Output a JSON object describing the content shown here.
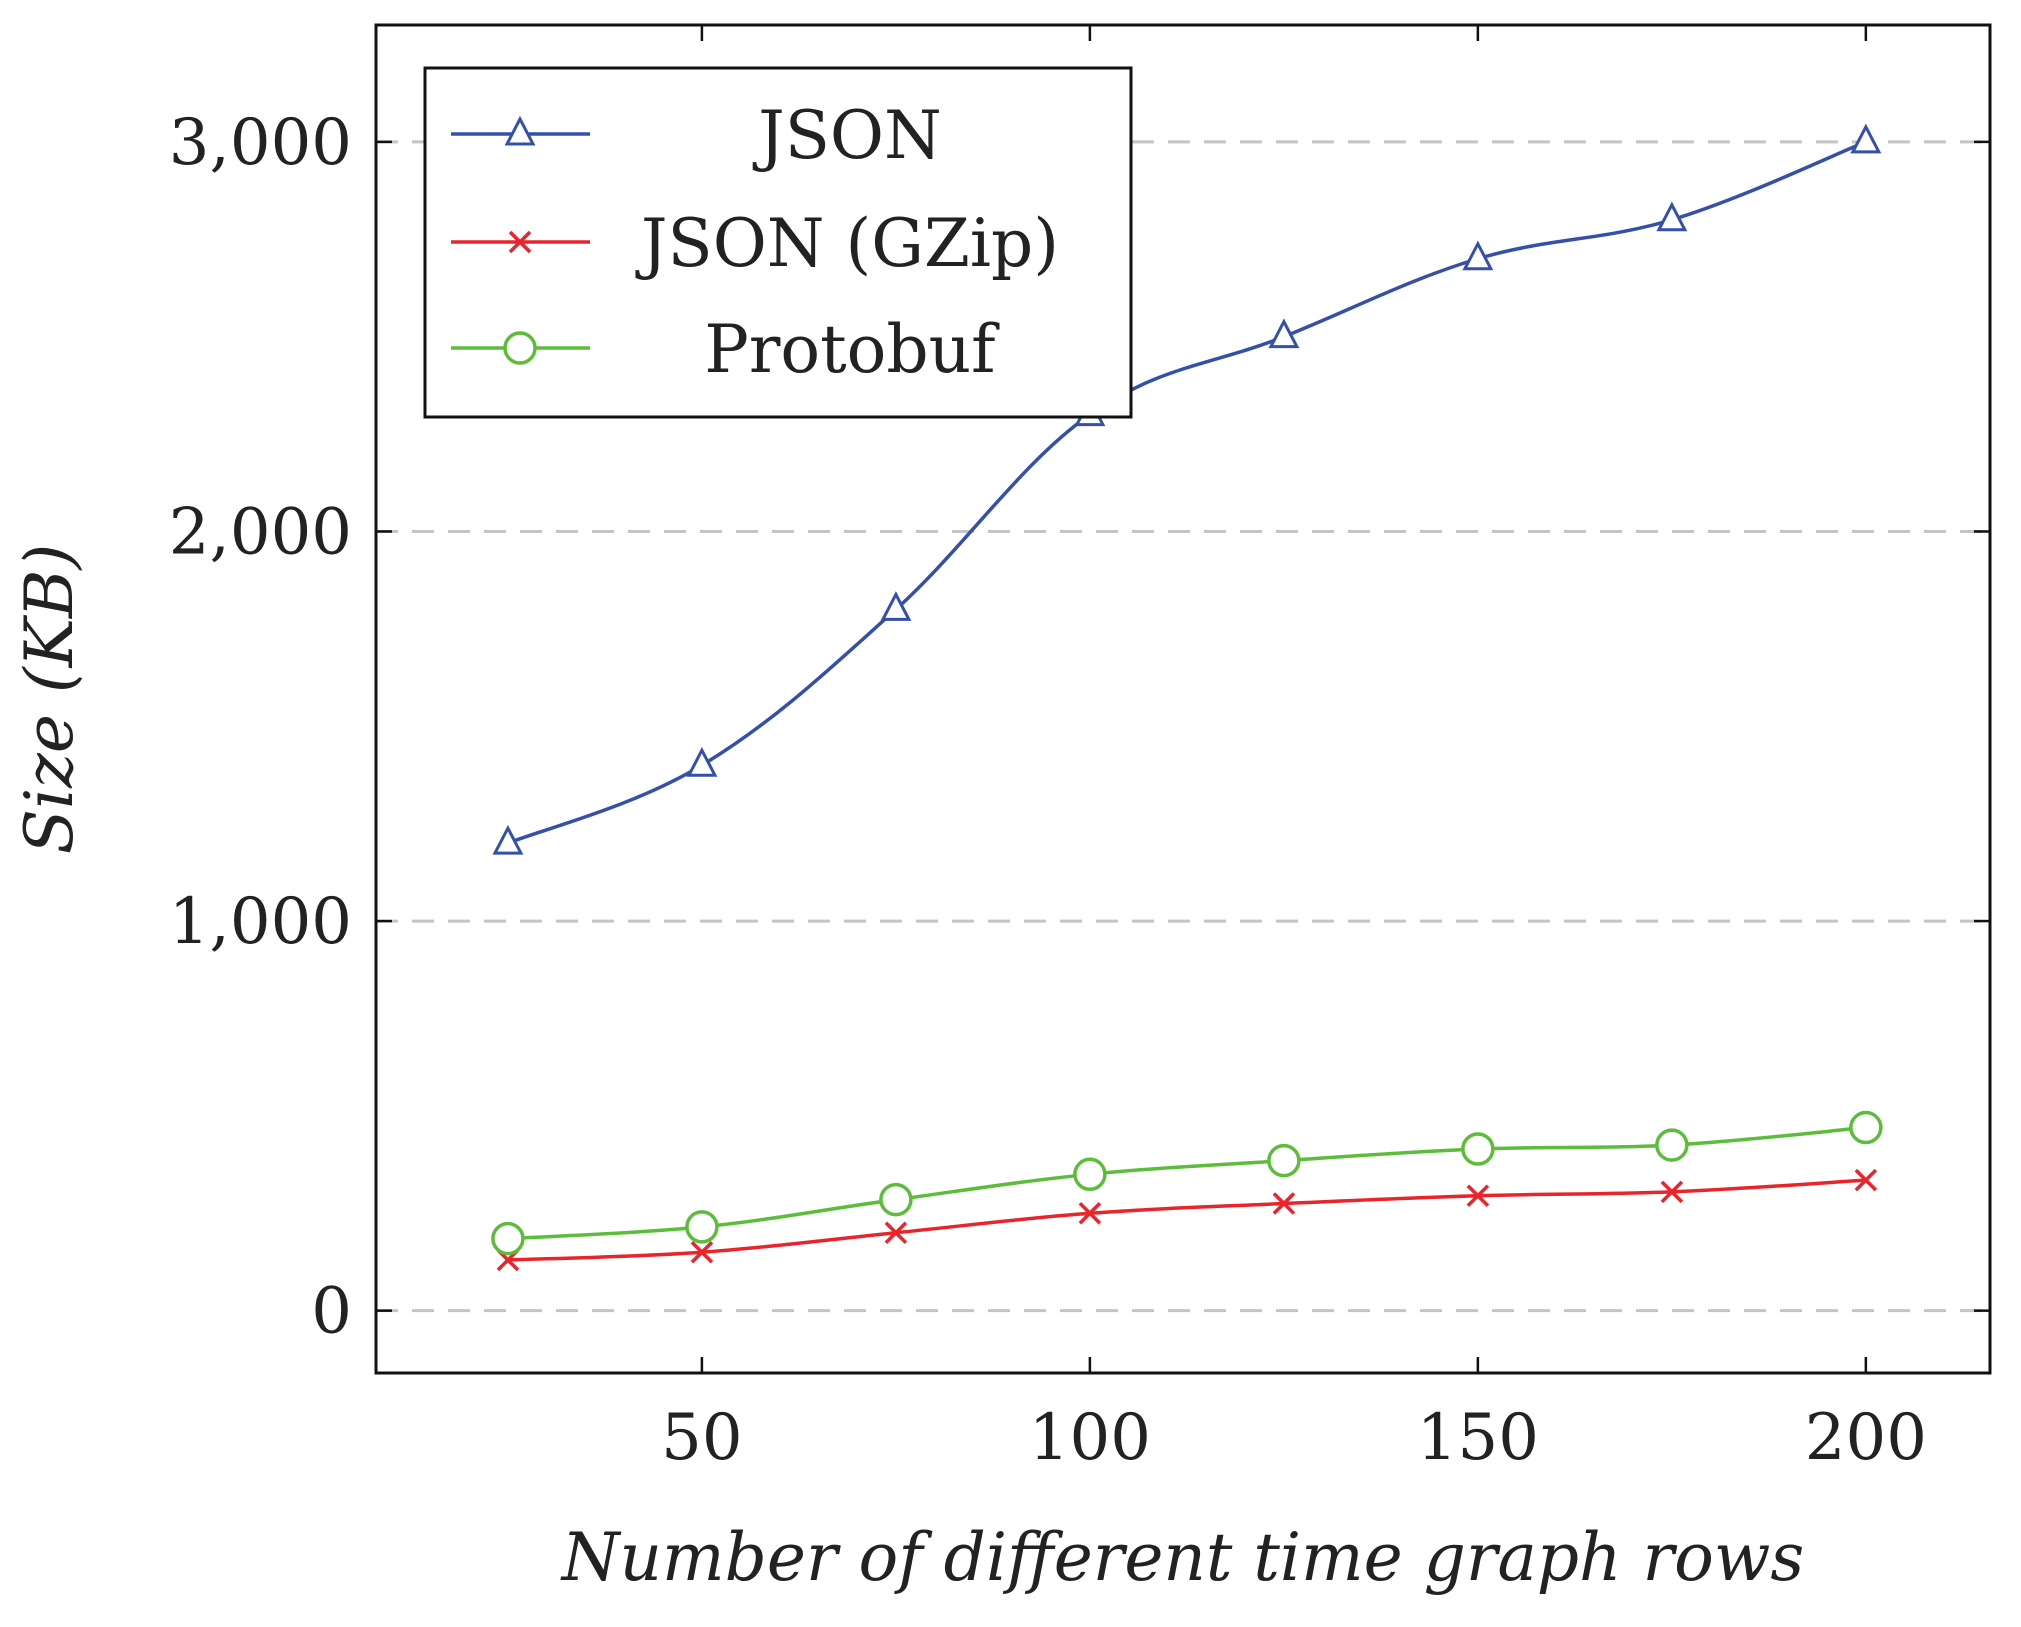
{
  "chart_data": {
    "type": "line",
    "title": "",
    "xlabel": "Number of different time graph rows",
    "ylabel": "Size (KB)",
    "xlim": [
      8,
      216
    ],
    "ylim": [
      -160,
      3300
    ],
    "x": [
      25,
      50,
      75,
      100,
      125,
      150,
      175,
      200
    ],
    "xticks": [
      50,
      100,
      150,
      200
    ],
    "xtick_labels": [
      "50",
      "100",
      "150",
      "200"
    ],
    "yticks": [
      0,
      1000,
      2000,
      3000
    ],
    "ytick_labels": [
      "0",
      "1,000",
      "2,000",
      "3,000"
    ],
    "grid": "horizontal dashed",
    "legend_position": "top-left",
    "series": [
      {
        "name": "JSON",
        "color": "#3550a8",
        "marker": "triangle",
        "values": [
          1200,
          1400,
          1800,
          2300,
          2500,
          2700,
          2800,
          3000
        ]
      },
      {
        "name": "JSON (GZip)",
        "color": "#e8252b",
        "marker": "cross",
        "values": [
          130,
          150,
          200,
          250,
          275,
          295,
          305,
          335
        ]
      },
      {
        "name": "Protobuf",
        "color": "#5cbd3a",
        "marker": "circle",
        "values": [
          185,
          215,
          285,
          350,
          385,
          415,
          425,
          470
        ]
      }
    ]
  }
}
